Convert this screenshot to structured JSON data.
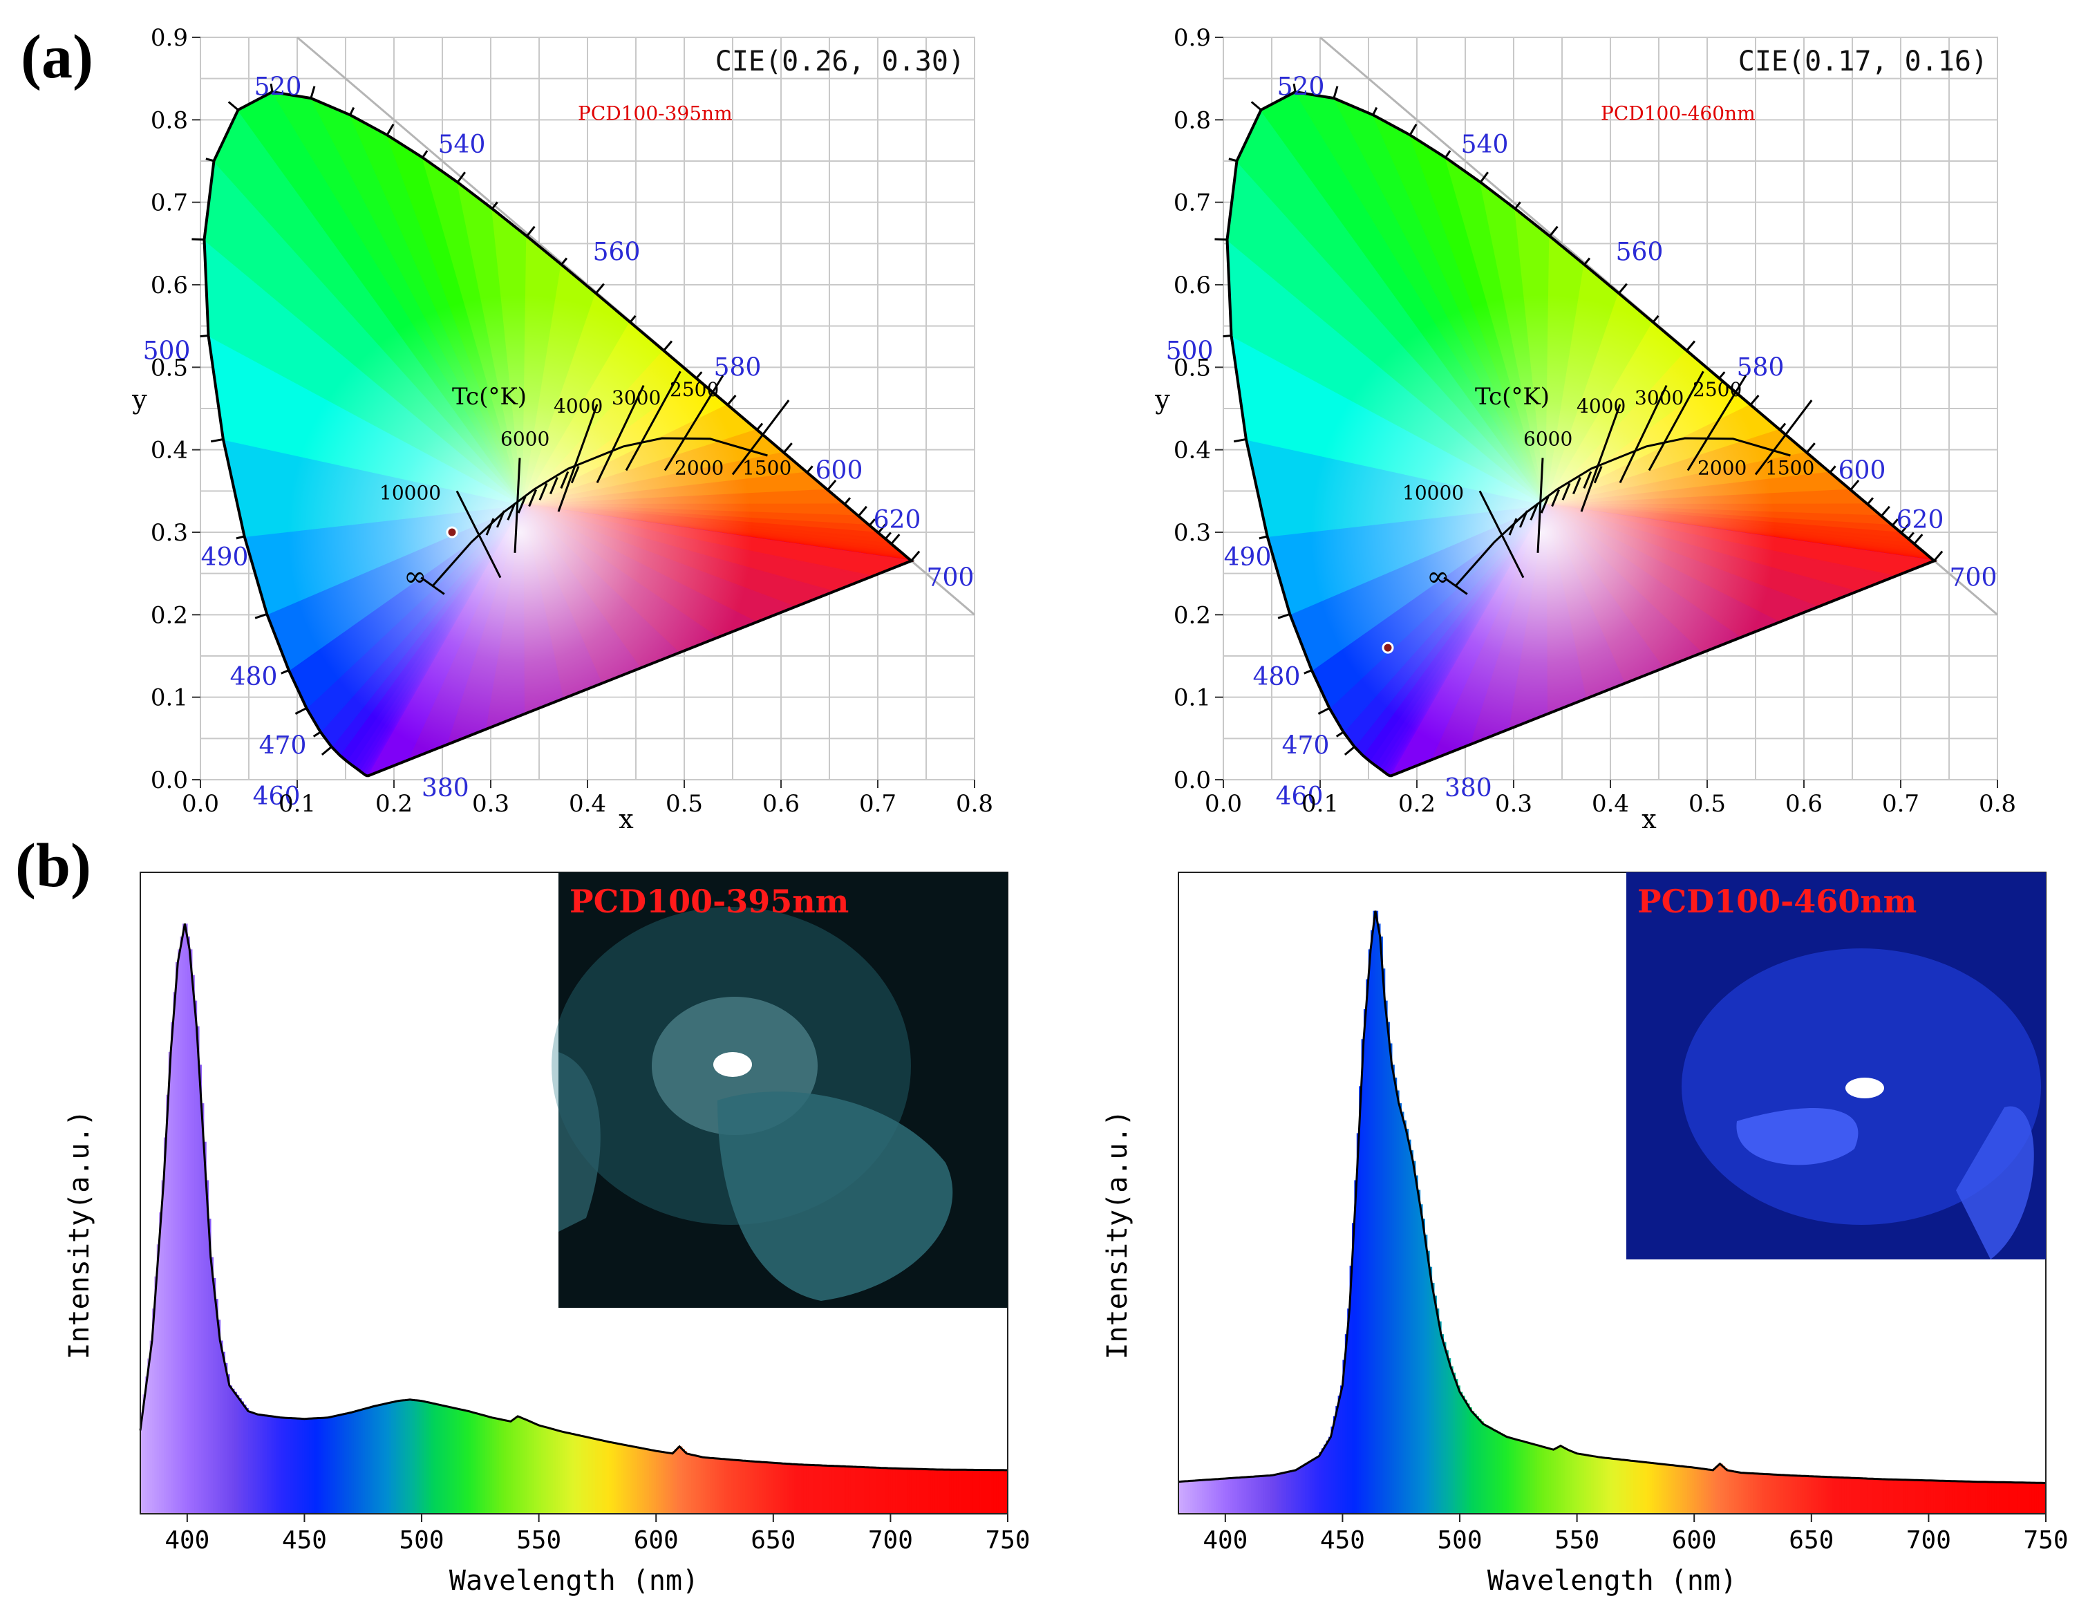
{
  "panels": {
    "a_label": "(a)",
    "b_label": "(b)"
  },
  "chart_data": [
    {
      "type": "scatter",
      "subtype": "cie1931-chromaticity",
      "title": "CIE(0.26, 0.30)",
      "annotation": "PCD100-395nm",
      "xlabel": "x",
      "ylabel": "y",
      "xlim": [
        0.0,
        0.8
      ],
      "ylim": [
        0.0,
        0.9
      ],
      "xticks": [
        "0.0",
        "0.1",
        "0.2",
        "0.3",
        "0.4",
        "0.5",
        "0.6",
        "0.7",
        "0.8"
      ],
      "yticks": [
        "0.0",
        "0.1",
        "0.2",
        "0.3",
        "0.4",
        "0.5",
        "0.6",
        "0.7",
        "0.8",
        "0.9"
      ],
      "grid": true,
      "point": {
        "x": 0.26,
        "y": 0.3,
        "color": "#8b1a1a"
      },
      "wavelength_labels": [
        "380",
        "460",
        "470",
        "480",
        "490",
        "500",
        "520",
        "540",
        "560",
        "580",
        "600",
        "620",
        "700"
      ],
      "cct_title": "Tc(°K)",
      "cct_labels": [
        "∞",
        "10000",
        "6000",
        "4000",
        "3000",
        "2500",
        "2000",
        "1500"
      ]
    },
    {
      "type": "scatter",
      "subtype": "cie1931-chromaticity",
      "title": "CIE(0.17, 0.16)",
      "annotation": "PCD100-460nm",
      "xlabel": "x",
      "ylabel": "y",
      "xlim": [
        0.0,
        0.8
      ],
      "ylim": [
        0.0,
        0.9
      ],
      "xticks": [
        "0.0",
        "0.1",
        "0.2",
        "0.3",
        "0.4",
        "0.5",
        "0.6",
        "0.7",
        "0.8"
      ],
      "yticks": [
        "0.0",
        "0.1",
        "0.2",
        "0.3",
        "0.4",
        "0.5",
        "0.6",
        "0.7",
        "0.8",
        "0.9"
      ],
      "grid": true,
      "point": {
        "x": 0.17,
        "y": 0.16,
        "color": "#8b1a1a"
      },
      "wavelength_labels": [
        "380",
        "460",
        "470",
        "480",
        "490",
        "500",
        "520",
        "540",
        "560",
        "580",
        "600",
        "620",
        "700"
      ],
      "cct_title": "Tc(°K)",
      "cct_labels": [
        "∞",
        "10000",
        "6000",
        "4000",
        "3000",
        "2500",
        "2000",
        "1500"
      ]
    },
    {
      "type": "area",
      "xlabel": "Wavelength (nm)",
      "ylabel": "Intensity(a.u.)",
      "xlim": [
        380,
        750
      ],
      "ylim": [
        0,
        1.0
      ],
      "xticks": [
        "400",
        "450",
        "500",
        "550",
        "600",
        "650",
        "700",
        "750"
      ],
      "inset_title": "PCD100-395nm",
      "x": [
        380,
        385,
        390,
        393,
        396,
        399,
        401,
        404,
        407,
        410,
        414,
        418,
        422,
        426,
        430,
        440,
        450,
        460,
        470,
        480,
        490,
        495,
        500,
        510,
        520,
        530,
        538,
        541,
        545,
        550,
        560,
        570,
        580,
        590,
        600,
        607,
        610,
        613,
        620,
        640,
        660,
        680,
        700,
        720,
        750
      ],
      "values": [
        0.13,
        0.27,
        0.52,
        0.72,
        0.86,
        0.92,
        0.88,
        0.76,
        0.58,
        0.4,
        0.27,
        0.2,
        0.18,
        0.16,
        0.155,
        0.15,
        0.148,
        0.15,
        0.158,
        0.168,
        0.176,
        0.178,
        0.176,
        0.168,
        0.16,
        0.15,
        0.144,
        0.152,
        0.146,
        0.138,
        0.128,
        0.12,
        0.112,
        0.105,
        0.098,
        0.094,
        0.105,
        0.094,
        0.088,
        0.082,
        0.077,
        0.074,
        0.071,
        0.069,
        0.068
      ]
    },
    {
      "type": "area",
      "xlabel": "Wavelength (nm)",
      "ylabel": "Intensity(a.u.)",
      "xlim": [
        380,
        750
      ],
      "ylim": [
        0,
        1.0
      ],
      "xticks": [
        "400",
        "450",
        "500",
        "550",
        "600",
        "650",
        "700",
        "750"
      ],
      "inset_title": "PCD100-460nm",
      "x": [
        380,
        400,
        420,
        430,
        440,
        445,
        450,
        453,
        456,
        459,
        462,
        464,
        466,
        468,
        471,
        474,
        477,
        480,
        484,
        488,
        492,
        496,
        500,
        505,
        510,
        520,
        530,
        540,
        543,
        546,
        550,
        560,
        580,
        600,
        608,
        611,
        614,
        620,
        640,
        660,
        680,
        700,
        720,
        750
      ],
      "values": [
        0.05,
        0.055,
        0.06,
        0.068,
        0.09,
        0.12,
        0.2,
        0.32,
        0.52,
        0.74,
        0.88,
        0.94,
        0.9,
        0.8,
        0.7,
        0.64,
        0.6,
        0.55,
        0.46,
        0.36,
        0.28,
        0.23,
        0.19,
        0.16,
        0.14,
        0.12,
        0.11,
        0.1,
        0.106,
        0.1,
        0.094,
        0.088,
        0.08,
        0.072,
        0.068,
        0.078,
        0.068,
        0.064,
        0.06,
        0.057,
        0.054,
        0.052,
        0.05,
        0.048
      ]
    }
  ]
}
